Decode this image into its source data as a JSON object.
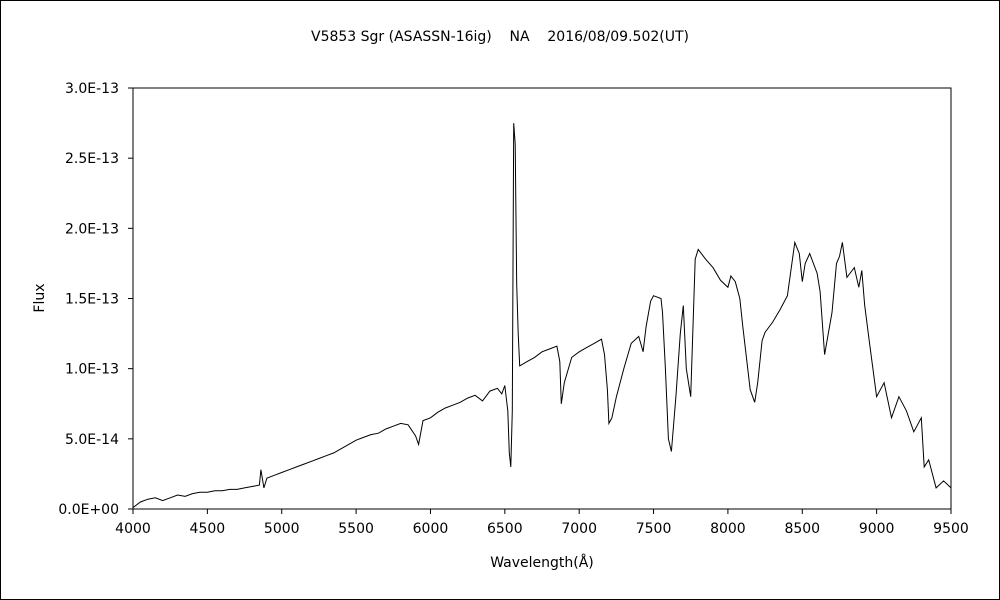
{
  "chart_data": {
    "type": "line",
    "title": "V5853 Sgr (ASASSN-16ig)    NA    2016/08/09.502(UT)",
    "xlabel": "Wavelength(Å)",
    "ylabel": "Flux",
    "xlim": [
      4000,
      9500
    ],
    "ylim": [
      0,
      3e-13
    ],
    "grid": false,
    "legend": "none",
    "line_color": "#000000",
    "x_ticks": [
      {
        "value": 4000,
        "label": "4000"
      },
      {
        "value": 4500,
        "label": "4500"
      },
      {
        "value": 5000,
        "label": "5000"
      },
      {
        "value": 5500,
        "label": "5500"
      },
      {
        "value": 6000,
        "label": "6000"
      },
      {
        "value": 6500,
        "label": "6500"
      },
      {
        "value": 7000,
        "label": "7000"
      },
      {
        "value": 7500,
        "label": "7500"
      },
      {
        "value": 8000,
        "label": "8000"
      },
      {
        "value": 8500,
        "label": "8500"
      },
      {
        "value": 9000,
        "label": "9000"
      },
      {
        "value": 9500,
        "label": "9500"
      }
    ],
    "y_ticks": [
      {
        "value": 0,
        "label": "0.0E+00"
      },
      {
        "value": 5e-14,
        "label": "5.0E-14"
      },
      {
        "value": 1e-13,
        "label": "1.0E-13"
      },
      {
        "value": 1.5e-13,
        "label": "1.5E-13"
      },
      {
        "value": 2e-13,
        "label": "2.0E-13"
      },
      {
        "value": 2.5e-13,
        "label": "2.5E-13"
      },
      {
        "value": 3e-13,
        "label": "3.0E-13"
      }
    ],
    "series": [
      {
        "x": [
          4000,
          4050,
          4100,
          4150,
          4200,
          4250,
          4300,
          4350,
          4400,
          4450,
          4500,
          4550,
          4600,
          4650,
          4700,
          4750,
          4800,
          4850,
          4860,
          4880,
          4900,
          4950,
          5000,
          5050,
          5100,
          5150,
          5200,
          5250,
          5300,
          5350,
          5400,
          5450,
          5500,
          5550,
          5600,
          5650,
          5700,
          5750,
          5800,
          5850,
          5900,
          5920,
          5950,
          6000,
          6050,
          6100,
          6150,
          6200,
          6250,
          6300,
          6350,
          6400,
          6450,
          6480,
          6500,
          6520,
          6530,
          6540,
          6550,
          6560,
          6570,
          6580,
          6590,
          6600,
          6650,
          6700,
          6750,
          6800,
          6850,
          6870,
          6880,
          6900,
          6950,
          7000,
          7050,
          7100,
          7150,
          7170,
          7190,
          7200,
          7220,
          7250,
          7300,
          7350,
          7400,
          7430,
          7450,
          7480,
          7500,
          7550,
          7560,
          7580,
          7600,
          7620,
          7650,
          7680,
          7700,
          7720,
          7750,
          7780,
          7800,
          7850,
          7900,
          7950,
          8000,
          8020,
          8050,
          8080,
          8100,
          8150,
          8180,
          8200,
          8230,
          8250,
          8300,
          8350,
          8400,
          8450,
          8480,
          8500,
          8520,
          8550,
          8600,
          8620,
          8650,
          8700,
          8730,
          8750,
          8770,
          8800,
          8850,
          8880,
          8900,
          8920,
          8950,
          9000,
          9050,
          9100,
          9150,
          9200,
          9250,
          9300,
          9320,
          9350,
          9400,
          9450,
          9500
        ],
        "y": [
          1e-15,
          5e-15,
          7e-15,
          8e-15,
          6e-15,
          8e-15,
          1e-14,
          9e-15,
          1.1e-14,
          1.2e-14,
          1.2e-14,
          1.3e-14,
          1.3e-14,
          1.4e-14,
          1.4e-14,
          1.5e-14,
          1.6e-14,
          1.7e-14,
          2.8e-14,
          1.5e-14,
          2.2e-14,
          2.4e-14,
          2.6e-14,
          2.8e-14,
          3e-14,
          3.2e-14,
          3.4e-14,
          3.6e-14,
          3.8e-14,
          4e-14,
          4.3e-14,
          4.6e-14,
          4.9e-14,
          5.1e-14,
          5.3e-14,
          5.4e-14,
          5.7e-14,
          5.9e-14,
          6.1e-14,
          6e-14,
          5.2e-14,
          4.6e-14,
          6.3e-14,
          6.5e-14,
          6.9e-14,
          7.2e-14,
          7.4e-14,
          7.6e-14,
          7.9e-14,
          8.1e-14,
          7.7e-14,
          8.4e-14,
          8.6e-14,
          8.2e-14,
          8.8e-14,
          7e-14,
          4e-14,
          3e-14,
          7e-14,
          2.75e-13,
          2.6e-13,
          1.6e-13,
          1.25e-13,
          1.02e-13,
          1.05e-13,
          1.08e-13,
          1.12e-13,
          1.14e-13,
          1.16e-13,
          1.05e-13,
          7.5e-14,
          9e-14,
          1.08e-13,
          1.12e-13,
          1.15e-13,
          1.18e-13,
          1.21e-13,
          1.1e-13,
          8.5e-14,
          6.1e-14,
          6.5e-14,
          8e-14,
          1e-13,
          1.18e-13,
          1.23e-13,
          1.12e-13,
          1.3e-13,
          1.48e-13,
          1.52e-13,
          1.5e-13,
          1.4e-13,
          1e-13,
          5e-14,
          4.1e-14,
          8e-14,
          1.25e-13,
          1.45e-13,
          1e-13,
          8e-14,
          1.78e-13,
          1.85e-13,
          1.78e-13,
          1.72e-13,
          1.63e-13,
          1.58e-13,
          1.66e-13,
          1.62e-13,
          1.5e-13,
          1.3e-13,
          8.5e-14,
          7.6e-14,
          9e-14,
          1.2e-13,
          1.26e-13,
          1.33e-13,
          1.42e-13,
          1.52e-13,
          1.9e-13,
          1.82e-13,
          1.62e-13,
          1.75e-13,
          1.82e-13,
          1.68e-13,
          1.55e-13,
          1.1e-13,
          1.4e-13,
          1.75e-13,
          1.8e-13,
          1.9e-13,
          1.65e-13,
          1.72e-13,
          1.58e-13,
          1.7e-13,
          1.45e-13,
          1.2e-13,
          8e-14,
          9e-14,
          6.5e-14,
          8e-14,
          7e-14,
          5.5e-14,
          6.5e-14,
          3e-14,
          3.5e-14,
          1.5e-14,
          2e-14,
          1.5e-14
        ]
      }
    ]
  }
}
